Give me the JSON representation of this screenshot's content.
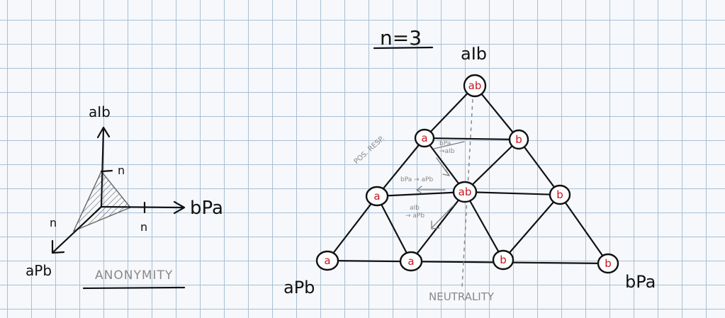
{
  "left_diagram": {
    "axis_top_label": "aIb",
    "axis_right_label": "bPa",
    "axis_bottom_label": "aPb",
    "n_top": "n",
    "n_right": "n",
    "n_left": "n",
    "caption": "ANONYMITY"
  },
  "right_diagram": {
    "title": "n=3",
    "corner_top": "aIb",
    "corner_left": "aPb",
    "corner_right": "bPa",
    "nodes": [
      {
        "label": "ab"
      },
      {
        "label": "a"
      },
      {
        "label": "b"
      },
      {
        "label": "a"
      },
      {
        "label": "ab"
      },
      {
        "label": "b"
      },
      {
        "label": "a"
      },
      {
        "label": "a"
      },
      {
        "label": "b"
      },
      {
        "label": "b"
      }
    ],
    "annotations": {
      "pos_resp": "POS. RESP.",
      "ann1_line1": "bPa",
      "ann1_line2": "→aIb",
      "ann2": "bPa → aPb",
      "ann3_line1": "aIb",
      "ann3_line2": "→ aPb",
      "neutrality": "NEUTRALITY"
    }
  },
  "colors": {
    "ink": "#111111",
    "node_label": "#c8141e",
    "pencil": "#7f7f7f",
    "grid": "#a9bfd4"
  }
}
